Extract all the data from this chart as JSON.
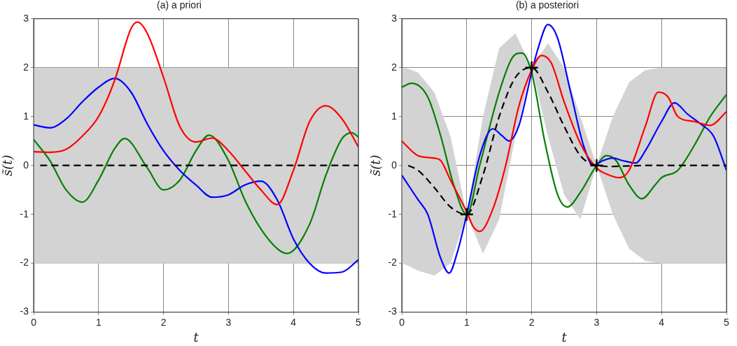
{
  "chart_data": [
    {
      "type": "line",
      "title": "(a) a priori",
      "xlabel": "t",
      "ylabel": "s̃(t)",
      "xlim": [
        0,
        5
      ],
      "ylim": [
        -3,
        3
      ],
      "xticks": [
        0,
        1,
        2,
        3,
        4,
        5
      ],
      "yticks": [
        -3,
        -2,
        -1,
        0,
        1,
        2,
        3
      ],
      "grid": true,
      "legend": false,
      "marker": "none",
      "series": [
        {
          "color": "#000000",
          "line_style": "dashed",
          "x": [
            0,
            0.1,
            5
          ],
          "values": [
            null,
            0,
            0
          ],
          "lower": [
            -2,
            -2,
            -2
          ],
          "upper": [
            2,
            2,
            2
          ]
        },
        {
          "color": "#ff0000",
          "x": [
            0,
            0.25,
            0.5,
            0.75,
            1,
            1.25,
            1.5,
            1.6,
            1.75,
            2,
            2.25,
            2.5,
            2.75,
            3,
            3.25,
            3.5,
            3.75,
            4,
            4.25,
            4.5,
            4.75,
            5
          ],
          "values": [
            0.28,
            0.27,
            0.33,
            0.6,
            1.0,
            1.75,
            2.8,
            2.93,
            2.7,
            1.8,
            0.8,
            0.48,
            0.56,
            0.3,
            -0.1,
            -0.5,
            -0.8,
            -0.1,
            0.9,
            1.22,
            0.95,
            0.38
          ]
        },
        {
          "color": "#0000ff",
          "x": [
            0,
            0.25,
            0.5,
            0.75,
            1,
            1.25,
            1.5,
            1.75,
            2,
            2.25,
            2.5,
            2.75,
            3,
            3.25,
            3.5,
            3.75,
            4,
            4.25,
            4.5,
            4.75,
            5
          ],
          "values": [
            0.83,
            0.77,
            0.95,
            1.3,
            1.6,
            1.78,
            1.5,
            0.85,
            0.3,
            -0.1,
            -0.4,
            -0.65,
            -0.6,
            -0.4,
            -0.32,
            -0.7,
            -1.5,
            -2.0,
            -2.2,
            -2.18,
            -1.93
          ]
        },
        {
          "color": "#008000",
          "x": [
            0,
            0.25,
            0.5,
            0.75,
            1,
            1.25,
            1.4,
            1.75,
            2,
            2.25,
            2.5,
            2.7,
            3,
            3.25,
            3.5,
            3.75,
            3.9,
            4.25,
            4.5,
            4.75,
            4.9,
            5
          ],
          "values": [
            0.53,
            0.1,
            -0.5,
            -0.75,
            -0.3,
            0.35,
            0.55,
            -0.05,
            -0.5,
            -0.3,
            0.3,
            0.62,
            0.1,
            -0.7,
            -1.3,
            -1.7,
            -1.8,
            -1.2,
            -0.2,
            0.55,
            0.67,
            0.58
          ]
        }
      ]
    },
    {
      "type": "line",
      "title": "(b) a posteriori",
      "xlabel": "t",
      "ylabel": "s̃(t)",
      "xlim": [
        0,
        5
      ],
      "ylim": [
        -3,
        3
      ],
      "xticks": [
        0,
        1,
        2,
        3,
        4,
        5
      ],
      "yticks": [
        -3,
        -2,
        -1,
        0,
        1,
        2,
        3
      ],
      "grid": true,
      "legend": false,
      "marker": "none",
      "series": [
        {
          "color": "#000000",
          "line_style": "dashed",
          "x": [
            0,
            0.1,
            0.25,
            0.5,
            0.75,
            1,
            1.25,
            1.5,
            1.75,
            2,
            2.25,
            2.5,
            2.75,
            3,
            3.25,
            3.5,
            3.75,
            4,
            4.5,
            5
          ],
          "values": [
            null,
            0,
            -0.1,
            -0.45,
            -0.85,
            -1,
            -0.2,
            1.0,
            1.8,
            2,
            1.5,
            0.8,
            0.2,
            0,
            -0.02,
            -0.01,
            0,
            0,
            0,
            0
          ],
          "lower": [
            -2,
            -2.05,
            -2.15,
            -2.25,
            -2.0,
            -1,
            -1.8,
            -1.1,
            0.6,
            2,
            0.6,
            -0.6,
            -1.1,
            0,
            -1.0,
            -1.7,
            -1.95,
            -2,
            -2,
            -2
          ],
          "upper": [
            2,
            1.98,
            1.9,
            1.5,
            0.6,
            -1,
            1.0,
            2.4,
            2.7,
            2,
            2.5,
            2.0,
            1.0,
            0,
            1.0,
            1.7,
            1.95,
            2,
            2,
            2
          ]
        },
        {
          "color": "#ff0000",
          "x": [
            0,
            0.25,
            0.5,
            0.6,
            0.75,
            1,
            1.1,
            1.2,
            1.4,
            1.6,
            1.8,
            2,
            2.15,
            2.3,
            2.5,
            2.75,
            3,
            3.2,
            3.35,
            3.5,
            3.75,
            3.95,
            4.1,
            4.25,
            4.5,
            4.75,
            5
          ],
          "values": [
            0.5,
            0.2,
            0.15,
            0.1,
            -0.3,
            -0.95,
            -1.25,
            -1.35,
            -0.9,
            0,
            1.2,
            1.95,
            2.25,
            2.1,
            1.3,
            0.45,
            -0.05,
            -0.2,
            -0.25,
            -0.1,
            0.8,
            1.5,
            1.4,
            1.0,
            0.9,
            0.82,
            1.1
          ]
        },
        {
          "color": "#0000ff",
          "x": [
            0,
            0.25,
            0.4,
            0.6,
            0.73,
            0.85,
            1,
            1.2,
            1.4,
            1.55,
            1.65,
            1.8,
            2,
            2.1,
            2.25,
            2.4,
            2.6,
            2.8,
            2.95,
            3.1,
            3.25,
            3.4,
            3.6,
            3.75,
            4,
            4.2,
            4.4,
            4.6,
            4.8,
            5
          ],
          "values": [
            -0.2,
            -0.7,
            -1.0,
            -1.9,
            -2.2,
            -1.8,
            -1.0,
            0.2,
            0.75,
            0.6,
            0.5,
            0.8,
            1.9,
            2.4,
            2.88,
            2.6,
            1.5,
            0.4,
            0,
            0.1,
            0.15,
            0.1,
            0.05,
            0.3,
            0.9,
            1.28,
            1.05,
            0.85,
            0.6,
            -0.1
          ]
        },
        {
          "color": "#008000",
          "x": [
            0,
            0.15,
            0.4,
            0.6,
            0.8,
            1,
            1.2,
            1.5,
            1.7,
            1.85,
            2,
            2.2,
            2.4,
            2.55,
            2.75,
            3,
            3.15,
            3.3,
            3.5,
            3.7,
            3.9,
            4,
            4.25,
            4.5,
            4.75,
            5
          ],
          "values": [
            1.6,
            1.68,
            1.4,
            0.6,
            -0.4,
            -1.0,
            0.0,
            1.5,
            2.2,
            2.3,
            1.9,
            0.5,
            -0.6,
            -0.85,
            -0.55,
            0,
            0.2,
            0.1,
            -0.4,
            -0.68,
            -0.4,
            -0.25,
            -0.1,
            0.4,
            1.0,
            1.45
          ]
        },
        {
          "type": "scatter",
          "color": "#000000",
          "marker": "cross",
          "x": [
            1,
            2,
            3
          ],
          "values": [
            -1,
            2,
            0
          ]
        }
      ]
    }
  ]
}
